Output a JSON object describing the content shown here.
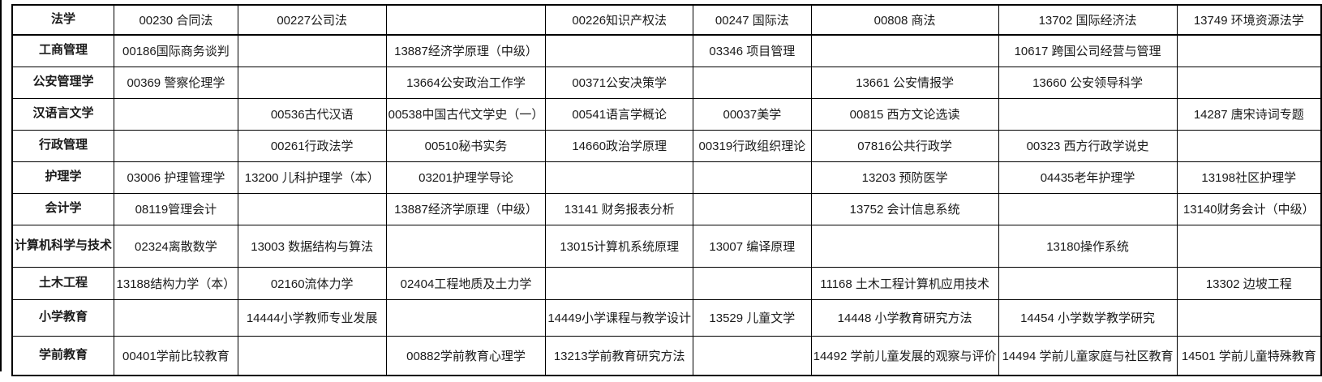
{
  "table": {
    "rows": [
      {
        "major": "法学",
        "cells": [
          "00230 合同法",
          "00227公司法",
          "",
          "00226知识产权法",
          "00247 国际法",
          "00808 商法",
          "13702 国际经济法",
          "13749 环境资源法学"
        ]
      },
      {
        "major": "工商管理",
        "cells": [
          "00186国际商务谈判",
          "",
          "13887经济学原理（中级）",
          "",
          "03346 项目管理",
          "",
          "10617 跨国公司经营与管理",
          ""
        ]
      },
      {
        "major": "公安管理学",
        "cells": [
          "00369 警察伦理学",
          "",
          "13664公安政治工作学",
          "00371公安决策学",
          "",
          "13661 公安情报学",
          "13660 公安领导科学",
          ""
        ]
      },
      {
        "major": "汉语言文学",
        "cells": [
          "",
          "00536古代汉语",
          "00538中国古代文学史（一）",
          "00541语言学概论",
          "00037美学",
          "00815 西方文论选读",
          "",
          "14287 唐宋诗词专题"
        ]
      },
      {
        "major": "行政管理",
        "cells": [
          "",
          "00261行政法学",
          "00510秘书实务",
          "14660政治学原理",
          "00319行政组织理论",
          "07816公共行政学",
          "00323 西方行政学说史",
          ""
        ]
      },
      {
        "major": "护理学",
        "cells": [
          "03006 护理管理学",
          "13200 儿科护理学（本）",
          "03201护理学导论",
          "",
          "",
          "13203 预防医学",
          "04435老年护理学",
          "13198社区护理学"
        ]
      },
      {
        "major": "会计学",
        "cells": [
          "08119管理会计",
          "",
          "13887经济学原理（中级）",
          "13141 财务报表分析",
          "",
          "13752 会计信息系统",
          "",
          "13140财务会计（中级）"
        ]
      },
      {
        "major": "计算机科学与技术",
        "cells": [
          "02324离散数学",
          "13003 数据结构与算法",
          "",
          "13015计算机系统原理",
          "13007 编译原理",
          "",
          "13180操作系统",
          ""
        ]
      },
      {
        "major": "土木工程",
        "cells": [
          "13188结构力学（本）",
          "02160流体力学",
          "02404工程地质及土力学",
          "",
          "",
          "11168 土木工程计算机应用技术",
          "",
          "13302 边坡工程"
        ]
      },
      {
        "major": "小学教育",
        "cells": [
          "",
          "14444小学教师专业发展",
          "",
          "14449小学课程与教学设计",
          "13529 儿童文学",
          "14448 小学教育研究方法",
          "14454 小学数学教学研究",
          ""
        ]
      },
      {
        "major": "学前教育",
        "cells": [
          "00401学前比较教育",
          "",
          "00882学前教育心理学",
          "13213学前教育研究方法",
          "",
          "14492 学前儿童发展的观察与评价",
          "14494 学前儿童家庭与社区教育",
          "14501 学前儿童特殊教育"
        ]
      }
    ]
  }
}
